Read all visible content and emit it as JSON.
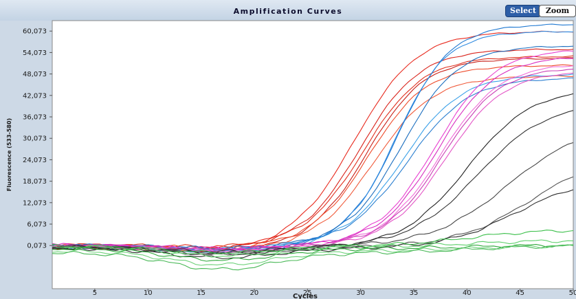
{
  "chart_data": {
    "type": "line",
    "title": "Amplification Curves",
    "xlabel": "Cycles",
    "ylabel": "Fluorescence (533-580)",
    "xlim": [
      1,
      50
    ],
    "ylim": [
      -12000,
      63000
    ],
    "x_ticks": [
      5,
      10,
      15,
      20,
      25,
      30,
      35,
      40,
      45,
      50
    ],
    "y_ticks": [
      0.073,
      6.073,
      12.073,
      18.073,
      24.073,
      30.073,
      36.073,
      42.073,
      48.073,
      54.073,
      60.073
    ],
    "y_tick_labels": [
      "0,073",
      "6,073",
      "12,073",
      "18,073",
      "24,073",
      "30,073",
      "36,073",
      "42,073",
      "48,073",
      "54,073",
      "60,073"
    ],
    "grid": false,
    "legend": "none",
    "series": [
      {
        "color": "#e8291d",
        "baseline": -200,
        "plateau": 60000,
        "midpoint": 29.5,
        "slope": 0.34,
        "dip": -1500
      },
      {
        "color": "#d9231b",
        "baseline": 0,
        "plateau": 55000,
        "midpoint": 30.0,
        "slope": 0.36,
        "dip": -1000
      },
      {
        "color": "#e0301f",
        "baseline": 300,
        "plateau": 53000,
        "midpoint": 30.3,
        "slope": 0.36,
        "dip": -800
      },
      {
        "color": "#c81e17",
        "baseline": -500,
        "plateau": 52500,
        "midpoint": 30.6,
        "slope": 0.37,
        "dip": -1200
      },
      {
        "color": "#ee4a2a",
        "baseline": 200,
        "plateau": 50500,
        "midpoint": 30.8,
        "slope": 0.37,
        "dip": -900
      },
      {
        "color": "#f05a3a",
        "baseline": -300,
        "plateau": 47500,
        "midpoint": 31.3,
        "slope": 0.36,
        "dip": -1100
      },
      {
        "color": "#1f78d1",
        "baseline": -300,
        "plateau": 62000,
        "midpoint": 33.5,
        "slope": 0.4,
        "dip": -1500
      },
      {
        "color": "#2f8ae0",
        "baseline": 0,
        "plateau": 60000,
        "midpoint": 33.3,
        "slope": 0.42,
        "dip": -1200
      },
      {
        "color": "#1d6fbf",
        "baseline": 200,
        "plateau": 56000,
        "midpoint": 33.9,
        "slope": 0.38,
        "dip": -900
      },
      {
        "color": "#3aa0e8",
        "baseline": -400,
        "plateau": 48000,
        "midpoint": 33.9,
        "slope": 0.36,
        "dip": -1300
      },
      {
        "color": "#2b7fd0",
        "baseline": 0,
        "plateau": 47000,
        "midpoint": 34.4,
        "slope": 0.35,
        "dip": -1000
      },
      {
        "color": "#e83fd0",
        "baseline": 0,
        "plateau": 55000,
        "midpoint": 37.0,
        "slope": 0.36,
        "dip": -1200
      },
      {
        "color": "#d82cc0",
        "baseline": 200,
        "plateau": 53000,
        "midpoint": 37.2,
        "slope": 0.37,
        "dip": -1000
      },
      {
        "color": "#f06ad8",
        "baseline": -300,
        "plateau": 51000,
        "midpoint": 37.5,
        "slope": 0.36,
        "dip": -1400
      },
      {
        "color": "#c93cb4",
        "baseline": 100,
        "plateau": 50000,
        "midpoint": 37.7,
        "slope": 0.37,
        "dip": -900
      },
      {
        "color": "#e455c6",
        "baseline": -200,
        "plateau": 49000,
        "midpoint": 38.0,
        "slope": 0.36,
        "dip": -1100
      },
      {
        "color": "#222222",
        "baseline": -600,
        "plateau": 44000,
        "midpoint": 40.0,
        "slope": 0.33,
        "dip": -1500
      },
      {
        "color": "#333333",
        "baseline": -300,
        "plateau": 40000,
        "midpoint": 41.0,
        "slope": 0.31,
        "dip": -1300
      },
      {
        "color": "#444444",
        "baseline": -200,
        "plateau": 34000,
        "midpoint": 43.8,
        "slope": 0.28,
        "dip": -2200
      },
      {
        "color": "#555555",
        "baseline": -500,
        "plateau": 26000,
        "midpoint": 46.0,
        "slope": 0.28,
        "dip": -1800
      },
      {
        "color": "#2e2e2e",
        "baseline": -800,
        "plateau": 19000,
        "midpoint": 44.5,
        "slope": 0.3,
        "dip": -2500
      },
      {
        "color": "#3bbf4a",
        "baseline": -100,
        "plateau": 4500,
        "midpoint": 40.0,
        "slope": 0.3,
        "dip": -1800
      },
      {
        "color": "#5ccf6a",
        "baseline": -300,
        "plateau": 1500,
        "midpoint": 40.0,
        "slope": 0.3,
        "dip": -2500
      },
      {
        "color": "#2fa83c",
        "baseline": -800,
        "plateau": 200,
        "midpoint": 40.0,
        "slope": 0.3,
        "dip": -3200
      },
      {
        "color": "#6fd27b",
        "baseline": -1500,
        "plateau": 0,
        "midpoint": 40.0,
        "slope": 0.3,
        "dip": -3800
      },
      {
        "color": "#48b856",
        "baseline": -2000,
        "plateau": 0,
        "midpoint": 40.0,
        "slope": 0.3,
        "dip": -4600
      }
    ]
  },
  "toolbar": {
    "select_label": "Select",
    "zoom_label": "Zoom"
  }
}
